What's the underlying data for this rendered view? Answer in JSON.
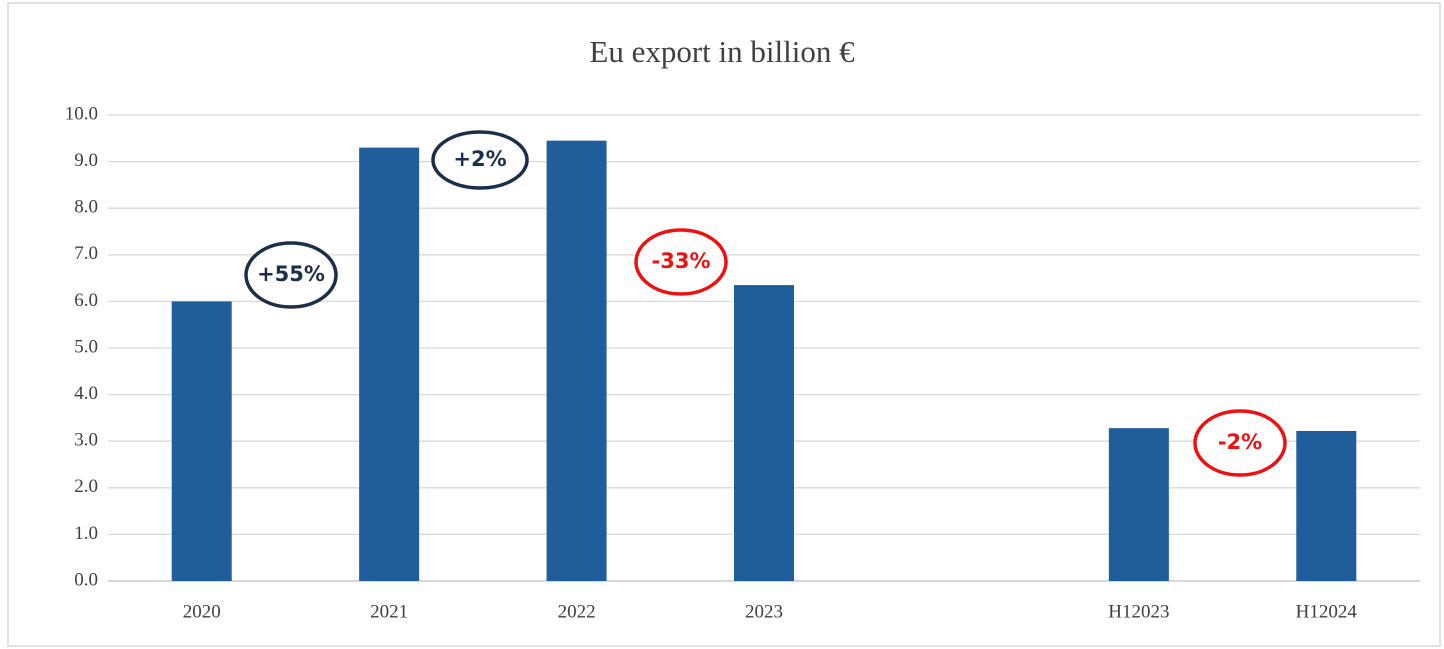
{
  "chart_data": {
    "type": "bar",
    "title": "Eu export in billion €",
    "categories": [
      "2020",
      "2021",
      "2022",
      "2023",
      null,
      "H12023",
      "H12024"
    ],
    "values": [
      6.0,
      9.3,
      9.45,
      6.35,
      null,
      3.28,
      3.22
    ],
    "color": "#205e9b",
    "ylim": [
      0,
      10
    ],
    "yticks": [
      {
        "value": 0,
        "label": "0.0"
      },
      {
        "value": 1,
        "label": "1.0"
      },
      {
        "value": 2,
        "label": "2.0"
      },
      {
        "value": 3,
        "label": "3.0"
      },
      {
        "value": 4,
        "label": "4.0"
      },
      {
        "value": 5,
        "label": "5.0"
      },
      {
        "value": 6,
        "label": "6.0"
      },
      {
        "value": 7,
        "label": "7.0"
      },
      {
        "value": 8,
        "label": "8.0"
      },
      {
        "value": 9,
        "label": "9.0"
      },
      {
        "value": 10,
        "label": "10.0"
      }
    ],
    "grid": true,
    "annotations": [
      {
        "text": "+55%",
        "color": "#1c2e4a"
      },
      {
        "text": "+2%",
        "color": "#1c2e4a"
      },
      {
        "text": "-33%",
        "color": "#ee1111"
      },
      {
        "text": "-2%",
        "color": "#ee1111"
      }
    ]
  }
}
